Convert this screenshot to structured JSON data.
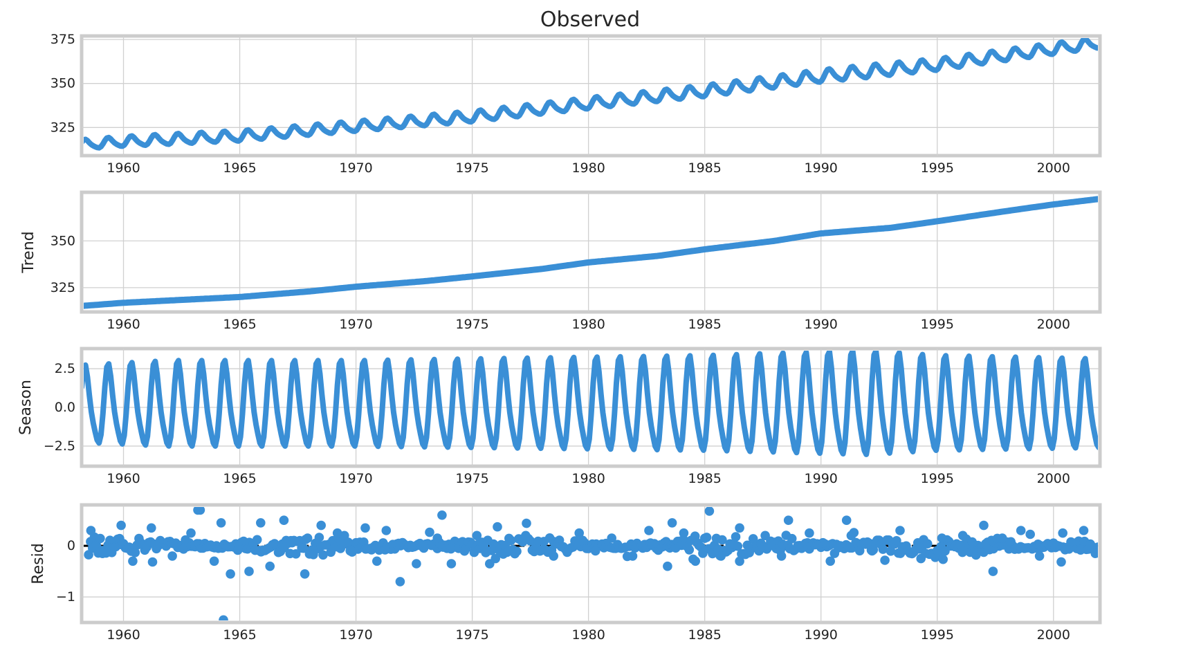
{
  "figure": {
    "title": "Observed",
    "line_color": "#3a8fd6",
    "zero_line_color": "#000000",
    "frame_color": "#cccccc",
    "grid_color": "#d0d0d0",
    "style": "seaborn-whitegrid"
  },
  "chart_data": [
    {
      "type": "line",
      "name": "observed",
      "title": "Observed",
      "ylabel": "",
      "xlim": [
        1958.2,
        2002.0
      ],
      "ylim": [
        309,
        377
      ],
      "xticks": [
        1960,
        1965,
        1970,
        1975,
        1980,
        1985,
        1990,
        1995,
        2000
      ],
      "xtick_labels": [
        "1960",
        "1965",
        "1970",
        "1975",
        "1980",
        "1985",
        "1990",
        "1995",
        "2000"
      ],
      "yticks": [
        325,
        350,
        375
      ],
      "ytick_labels": [
        "325",
        "350",
        "375"
      ],
      "grid": true,
      "x": [
        1958,
        1960,
        1965,
        1970,
        1975,
        1980,
        1985,
        1990,
        1995,
        1998,
        2000,
        2002
      ],
      "values": [
        315,
        316.9,
        320,
        325.5,
        331,
        338.5,
        345.5,
        354,
        360.5,
        366,
        369.5,
        373
      ],
      "seasonal_amplitude_shown_by": "season panel"
    },
    {
      "type": "line",
      "name": "trend",
      "ylabel": "Trend",
      "xlim": [
        1958.2,
        2002.0
      ],
      "ylim": [
        312,
        376
      ],
      "xticks": [
        1960,
        1965,
        1970,
        1975,
        1980,
        1985,
        1990,
        1995,
        2000
      ],
      "xtick_labels": [
        "1960",
        "1965",
        "1970",
        "1975",
        "1980",
        "1985",
        "1990",
        "1995",
        "2000"
      ],
      "yticks": [
        325,
        350
      ],
      "ytick_labels": [
        "325",
        "350"
      ],
      "grid": true,
      "x": [
        1958,
        1960,
        1965,
        1968,
        1970,
        1973,
        1975,
        1978,
        1980,
        1983,
        1985,
        1988,
        1990,
        1993,
        1995,
        1998,
        2000,
        2002
      ],
      "values": [
        315,
        316.9,
        320,
        323,
        325.5,
        328.5,
        331,
        335,
        338.5,
        342,
        345.5,
        350,
        354,
        357,
        360.5,
        366,
        369.5,
        372.5
      ]
    },
    {
      "type": "line",
      "name": "season",
      "ylabel": "Season",
      "xlim": [
        1958.2,
        2002.0
      ],
      "ylim": [
        -3.8,
        3.8
      ],
      "xticks": [
        1960,
        1965,
        1970,
        1975,
        1980,
        1985,
        1990,
        1995,
        2000
      ],
      "xtick_labels": [
        "1960",
        "1965",
        "1970",
        "1975",
        "1980",
        "1985",
        "1990",
        "1995",
        "2000"
      ],
      "yticks": [
        2.5,
        0.0,
        -2.5
      ],
      "ytick_labels": [
        "2.5",
        "0.0",
        "−2.5"
      ],
      "grid": true,
      "period_years": 1,
      "x": [
        1958,
        1962,
        1970,
        1980,
        1985,
        1992,
        1995,
        2002
      ],
      "amplitude": [
        2.5,
        2.8,
        2.8,
        3.0,
        3.1,
        3.4,
        3.1,
        2.9
      ]
    },
    {
      "type": "scatter",
      "name": "resid",
      "ylabel": "Resid",
      "xlim": [
        1958.2,
        2002.0
      ],
      "ylim": [
        -1.5,
        0.8
      ],
      "xticks": [
        1960,
        1965,
        1970,
        1975,
        1980,
        1985,
        1990,
        1995,
        2000
      ],
      "xtick_labels": [
        "1960",
        "1965",
        "1970",
        "1975",
        "1980",
        "1985",
        "1990",
        "1995",
        "2000"
      ],
      "yticks": [
        0,
        -1
      ],
      "ytick_labels": [
        "0",
        "−1"
      ],
      "grid": true,
      "zero_line": true,
      "x": [
        1958.6,
        1959.1,
        1959.9,
        1960.4,
        1961.2,
        1962.1,
        1962.9,
        1963.3,
        1963.9,
        1964.2,
        1964.6,
        1965.4,
        1965.9,
        1966.3,
        1966.9,
        1967.2,
        1967.8,
        1968.5,
        1969.2,
        1969.8,
        1970.4,
        1970.9,
        1971.3,
        1971.9,
        1972.6,
        1973.5,
        1973.7,
        1974.1,
        1975.2,
        1976.0,
        1977.3,
        1978.5,
        1979.6,
        1980.3,
        1981.0,
        1981.9,
        1982.6,
        1983.4,
        1983.6,
        1984.1,
        1984.6,
        1985.2,
        1985.7,
        1986.5,
        1987.6,
        1988.3,
        1988.6,
        1989.5,
        1990.4,
        1991.1,
        1991.3,
        1992.2,
        1993.4,
        1994.3,
        1995.2,
        1996.1,
        1997.0,
        1997.4,
        1997.8,
        1998.6,
        1999.4,
        2000.4,
        2001.3,
        2001.8
      ],
      "values": [
        0.3,
        -0.15,
        0.4,
        -0.3,
        0.35,
        -0.2,
        0.25,
        0.7,
        -0.3,
        0.45,
        -0.55,
        -0.5,
        0.45,
        -0.4,
        0.5,
        0.1,
        -0.55,
        0.4,
        0.25,
        -0.1,
        0.35,
        -0.3,
        0.3,
        -0.7,
        -0.35,
        0.15,
        0.6,
        -0.35,
        0.2,
        -0.25,
        0.2,
        -0.2,
        0.25,
        -0.1,
        0.15,
        -0.2,
        0.3,
        -0.4,
        0.45,
        0.25,
        -0.3,
        0.68,
        -0.2,
        0.35,
        0.2,
        -0.2,
        0.5,
        0.25,
        -0.3,
        0.5,
        0.2,
        -0.1,
        0.3,
        -0.25,
        0.15,
        0.2,
        0.4,
        -0.5,
        0.15,
        0.3,
        -0.2,
        0.25,
        0.3,
        -0.15
      ],
      "outliers": [
        {
          "x": 1964.3,
          "y": -1.45
        },
        {
          "x": 1963.2,
          "y": 0.7
        }
      ]
    }
  ]
}
